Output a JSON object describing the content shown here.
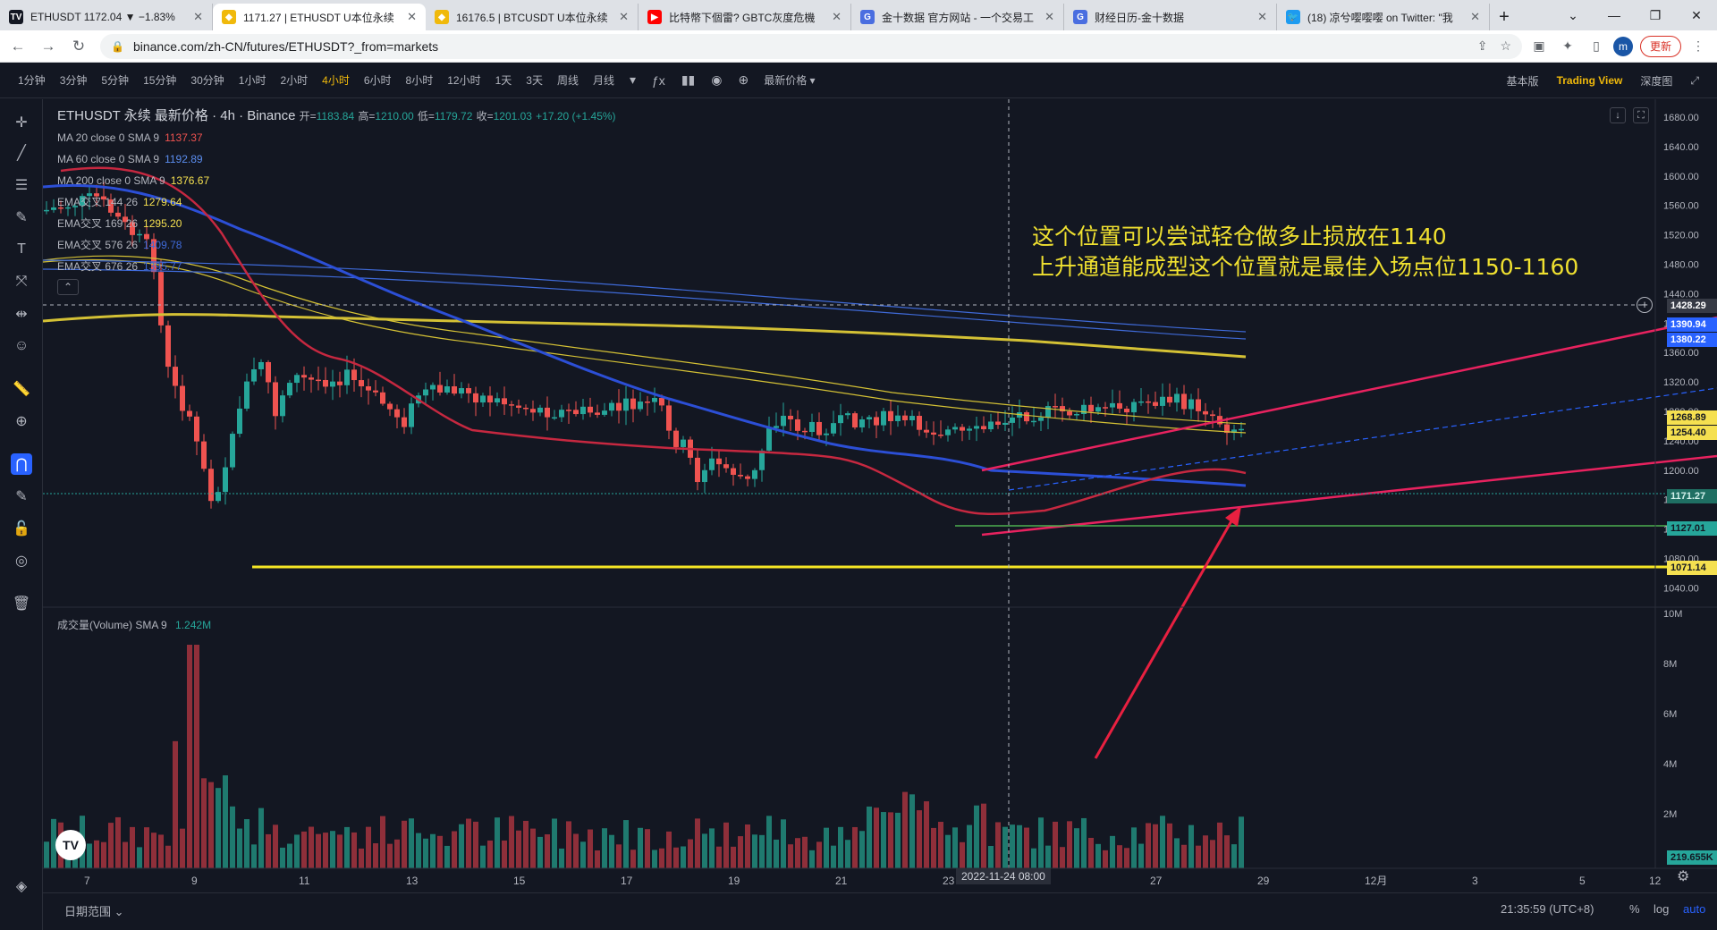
{
  "browser": {
    "tabs": [
      {
        "title": "ETHUSDT 1172.04 ▼ −1.83%",
        "fav": "TV",
        "favcolor": "#131722",
        "active": false
      },
      {
        "title": "1171.27 | ETHUSDT U本位永续",
        "fav": "◆",
        "favcolor": "#f0b90b",
        "active": true
      },
      {
        "title": "16176.5 | BTCUSDT U本位永续",
        "fav": "◆",
        "favcolor": "#f0b90b",
        "active": false
      },
      {
        "title": "比特幣下個雷? GBTC灰度危機",
        "fav": "▶",
        "favcolor": "#ff0000",
        "active": false
      },
      {
        "title": "金十数据 官方网站 - 一个交易工",
        "fav": "G",
        "favcolor": "#4a6ee0",
        "active": false
      },
      {
        "title": "财经日历-金十数据",
        "fav": "G",
        "favcolor": "#4a6ee0",
        "active": false
      },
      {
        "title": "(18) 凉兮嘤嘤嘤 on Twitter: \"我",
        "fav": "🐦",
        "favcolor": "#1d9bf0",
        "active": false
      }
    ],
    "url": "binance.com/zh-CN/futures/ETHUSDT?_from=markets",
    "update_label": "更新",
    "avatar_letter": "m"
  },
  "toolbar": {
    "timeframes": [
      "1分钟",
      "3分钟",
      "5分钟",
      "15分钟",
      "30分钟",
      "1小时",
      "2小时",
      "4小时",
      "6小时",
      "8小时",
      "12小时",
      "1天",
      "3天",
      "周线",
      "月线"
    ],
    "active_timeframe": "4小时",
    "price_type": "最新价格",
    "views": [
      "基本版",
      "Trading View",
      "深度图"
    ]
  },
  "legend": {
    "symbol": "ETHUSDT 永续 最新价格 · 4h · Binance",
    "open_label": "开=",
    "open": "1183.84",
    "high_label": "高=",
    "high": "1210.00",
    "low_label": "低=",
    "low": "1179.72",
    "close_label": "收=",
    "close": "1201.03",
    "change": "+17.20 (+1.45%)",
    "indicators": [
      {
        "name": "MA 20 close 0 SMA 9",
        "value": "1137.37",
        "color": "#ef5350"
      },
      {
        "name": "MA 60 close 0 SMA 9",
        "value": "1192.89",
        "color": "#5b8def"
      },
      {
        "name": "MA 200 close 0 SMA 9",
        "value": "1376.67",
        "color": "#f5e050"
      },
      {
        "name": "EMA交叉 144 26",
        "value": "1279.64",
        "color": "#f5e050"
      },
      {
        "name": "EMA交叉 169 26",
        "value": "1295.20",
        "color": "#f5e050"
      },
      {
        "name": "EMA交叉 576 26",
        "value": "1409.78",
        "color": "#3f6ad8"
      },
      {
        "name": "EMA交叉 676 26",
        "value": "1395.77",
        "color": "#3f6ad8"
      }
    ],
    "volume_label": "成交量(Volume) SMA 9",
    "volume_value": "1.242M"
  },
  "annotation": {
    "line1": "这个位置可以尝试轻仓做多止损放在1140",
    "line2": "上升通道能成型这个位置就是最佳入场点位1150-1160"
  },
  "price_axis": {
    "ticks": [
      "1680.00",
      "1640.00",
      "1600.00",
      "1560.00",
      "1520.00",
      "1480.00",
      "1440.00",
      "1400.00",
      "1360.00",
      "1320.00",
      "1280.00",
      "1240.00",
      "1200.00",
      "1160.00",
      "1120.00",
      "1080.00",
      "1040.00"
    ],
    "labels": [
      {
        "text": "1428.29",
        "kind": "cross"
      },
      {
        "text": "1390.94",
        "kind": "blue"
      },
      {
        "text": "1380.22",
        "kind": "blue"
      },
      {
        "text": "1268.89",
        "kind": "yellow"
      },
      {
        "text": "1254.40",
        "kind": "yellow"
      },
      {
        "text": "1171.27",
        "kind": "green"
      },
      {
        "text": "1127.01",
        "kind": "green"
      },
      {
        "text": "1071.14",
        "kind": "yellow"
      }
    ],
    "volume_ticks": [
      "10M",
      "8M",
      "6M",
      "4M",
      "2M"
    ],
    "volume_label": "219.655K"
  },
  "time_axis": {
    "ticks": [
      "7",
      "9",
      "11",
      "13",
      "15",
      "17",
      "19",
      "21",
      "23",
      "27",
      "29",
      "12月",
      "3",
      "5",
      "12"
    ],
    "crosshair_date": "2022-11-24   08:00"
  },
  "bottom": {
    "range_label": "日期范围",
    "clock": "21:35:59 (UTC+8)",
    "pct": "%",
    "log": "log",
    "auto": "auto"
  }
}
